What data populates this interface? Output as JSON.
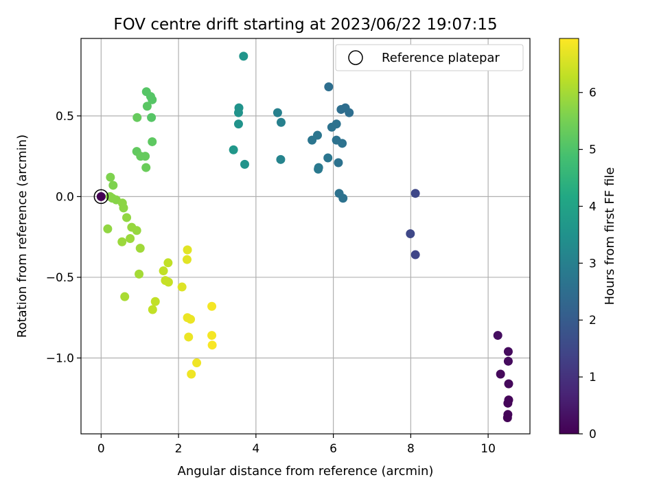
{
  "chart_data": {
    "type": "scatter",
    "title": "FOV centre drift starting at 2023/06/22 19:07:15",
    "xlabel": "Angular distance from reference (arcmin)",
    "ylabel": "Rotation from reference (arcmin)",
    "xlim": [
      -0.52,
      11.08
    ],
    "ylim": [
      -1.47,
      0.98
    ],
    "xticks": [
      0,
      2,
      4,
      6,
      8,
      10
    ],
    "xtick_labels": [
      "0",
      "2",
      "4",
      "6",
      "8",
      "10"
    ],
    "yticks": [
      0.5,
      0.0,
      -0.5,
      -1.0
    ],
    "ytick_labels": [
      "0.5",
      "0.0",
      "−0.5",
      "−1.0"
    ],
    "grid": true,
    "legend": {
      "placement": "top-right",
      "entries": [
        "Reference platepar"
      ]
    },
    "reference_point": {
      "label": "Reference platepar",
      "x": 0,
      "y": 0
    },
    "colorbar": {
      "label": "Hours from first FF file",
      "colormap": "viridis",
      "range": [
        0,
        6.95
      ],
      "ticks": [
        0,
        1,
        2,
        3,
        4,
        5,
        6
      ],
      "tick_labels": [
        "0",
        "1",
        "2",
        "3",
        "4",
        "5",
        "6"
      ]
    },
    "points": [
      {
        "x": 0.0,
        "y": 0.0,
        "h": 0.0
      },
      {
        "x": 10.25,
        "y": -0.86,
        "h": 0.25
      },
      {
        "x": 10.52,
        "y": -0.96,
        "h": 0.2
      },
      {
        "x": 10.52,
        "y": -1.02,
        "h": 0.2
      },
      {
        "x": 10.32,
        "y": -1.1,
        "h": 0.15
      },
      {
        "x": 10.53,
        "y": -1.16,
        "h": 0.15
      },
      {
        "x": 10.53,
        "y": -1.26,
        "h": 0.1
      },
      {
        "x": 10.51,
        "y": -1.28,
        "h": 0.1
      },
      {
        "x": 10.51,
        "y": -1.35,
        "h": 0.1
      },
      {
        "x": 10.5,
        "y": -1.37,
        "h": 0.05
      },
      {
        "x": 8.12,
        "y": 0.02,
        "h": 1.5
      },
      {
        "x": 7.99,
        "y": -0.23,
        "h": 1.5
      },
      {
        "x": 8.12,
        "y": -0.36,
        "h": 1.45
      },
      {
        "x": 5.88,
        "y": 0.68,
        "h": 2.5
      },
      {
        "x": 6.31,
        "y": 0.55,
        "h": 2.5
      },
      {
        "x": 6.2,
        "y": 0.54,
        "h": 2.5
      },
      {
        "x": 6.41,
        "y": 0.52,
        "h": 2.5
      },
      {
        "x": 6.08,
        "y": 0.45,
        "h": 2.6
      },
      {
        "x": 5.96,
        "y": 0.43,
        "h": 2.6
      },
      {
        "x": 5.59,
        "y": 0.38,
        "h": 2.7
      },
      {
        "x": 5.45,
        "y": 0.35,
        "h": 2.7
      },
      {
        "x": 6.08,
        "y": 0.35,
        "h": 2.6
      },
      {
        "x": 6.23,
        "y": 0.33,
        "h": 2.6
      },
      {
        "x": 5.86,
        "y": 0.24,
        "h": 2.7
      },
      {
        "x": 6.13,
        "y": 0.21,
        "h": 2.6
      },
      {
        "x": 5.62,
        "y": 0.18,
        "h": 2.8
      },
      {
        "x": 5.61,
        "y": 0.17,
        "h": 2.8
      },
      {
        "x": 6.15,
        "y": 0.02,
        "h": 2.6
      },
      {
        "x": 6.25,
        "y": -0.01,
        "h": 2.6
      },
      {
        "x": 4.56,
        "y": 0.52,
        "h": 3.0
      },
      {
        "x": 4.65,
        "y": 0.46,
        "h": 3.0
      },
      {
        "x": 4.64,
        "y": 0.23,
        "h": 3.1
      },
      {
        "x": 3.68,
        "y": 0.87,
        "h": 3.6
      },
      {
        "x": 3.56,
        "y": 0.55,
        "h": 3.55
      },
      {
        "x": 3.55,
        "y": 0.52,
        "h": 3.55
      },
      {
        "x": 3.55,
        "y": 0.45,
        "h": 3.55
      },
      {
        "x": 3.42,
        "y": 0.29,
        "h": 3.65
      },
      {
        "x": 3.71,
        "y": 0.2,
        "h": 3.55
      },
      {
        "x": 1.17,
        "y": 0.65,
        "h": 5.1
      },
      {
        "x": 1.28,
        "y": 0.62,
        "h": 5.1
      },
      {
        "x": 1.32,
        "y": 0.6,
        "h": 5.1
      },
      {
        "x": 1.19,
        "y": 0.56,
        "h": 5.15
      },
      {
        "x": 0.93,
        "y": 0.49,
        "h": 5.3
      },
      {
        "x": 1.3,
        "y": 0.49,
        "h": 5.1
      },
      {
        "x": 1.32,
        "y": 0.34,
        "h": 5.2
      },
      {
        "x": 0.92,
        "y": 0.28,
        "h": 5.25
      },
      {
        "x": 1.02,
        "y": 0.25,
        "h": 5.3
      },
      {
        "x": 1.14,
        "y": 0.25,
        "h": 5.3
      },
      {
        "x": 1.16,
        "y": 0.18,
        "h": 5.35
      },
      {
        "x": 0.24,
        "y": 0.12,
        "h": 5.6
      },
      {
        "x": 0.31,
        "y": 0.07,
        "h": 5.6
      },
      {
        "x": 0.23,
        "y": 0.0,
        "h": 5.7
      },
      {
        "x": 0.29,
        "y": -0.01,
        "h": 5.7
      },
      {
        "x": 0.39,
        "y": -0.02,
        "h": 5.7
      },
      {
        "x": 0.55,
        "y": -0.04,
        "h": 5.75
      },
      {
        "x": 0.58,
        "y": -0.07,
        "h": 5.75
      },
      {
        "x": 0.66,
        "y": -0.13,
        "h": 5.8
      },
      {
        "x": 0.17,
        "y": -0.2,
        "h": 5.8
      },
      {
        "x": 0.79,
        "y": -0.19,
        "h": 5.85
      },
      {
        "x": 0.92,
        "y": -0.21,
        "h": 5.85
      },
      {
        "x": 0.54,
        "y": -0.28,
        "h": 5.9
      },
      {
        "x": 0.75,
        "y": -0.26,
        "h": 5.9
      },
      {
        "x": 1.01,
        "y": -0.32,
        "h": 5.95
      },
      {
        "x": 0.98,
        "y": -0.48,
        "h": 6.0
      },
      {
        "x": 0.61,
        "y": -0.62,
        "h": 6.05
      },
      {
        "x": 1.73,
        "y": -0.41,
        "h": 6.3
      },
      {
        "x": 1.61,
        "y": -0.46,
        "h": 6.3
      },
      {
        "x": 1.66,
        "y": -0.52,
        "h": 6.35
      },
      {
        "x": 1.74,
        "y": -0.53,
        "h": 6.35
      },
      {
        "x": 1.4,
        "y": -0.65,
        "h": 6.3
      },
      {
        "x": 1.33,
        "y": -0.7,
        "h": 6.3
      },
      {
        "x": 2.23,
        "y": -0.33,
        "h": 6.65
      },
      {
        "x": 2.22,
        "y": -0.39,
        "h": 6.65
      },
      {
        "x": 2.09,
        "y": -0.56,
        "h": 6.6
      },
      {
        "x": 2.86,
        "y": -0.68,
        "h": 6.85
      },
      {
        "x": 2.23,
        "y": -0.75,
        "h": 6.75
      },
      {
        "x": 2.31,
        "y": -0.76,
        "h": 6.75
      },
      {
        "x": 2.86,
        "y": -0.86,
        "h": 6.85
      },
      {
        "x": 2.26,
        "y": -0.87,
        "h": 6.75
      },
      {
        "x": 2.87,
        "y": -0.92,
        "h": 6.9
      },
      {
        "x": 2.47,
        "y": -1.03,
        "h": 6.8
      },
      {
        "x": 2.33,
        "y": -1.1,
        "h": 6.8
      }
    ]
  }
}
